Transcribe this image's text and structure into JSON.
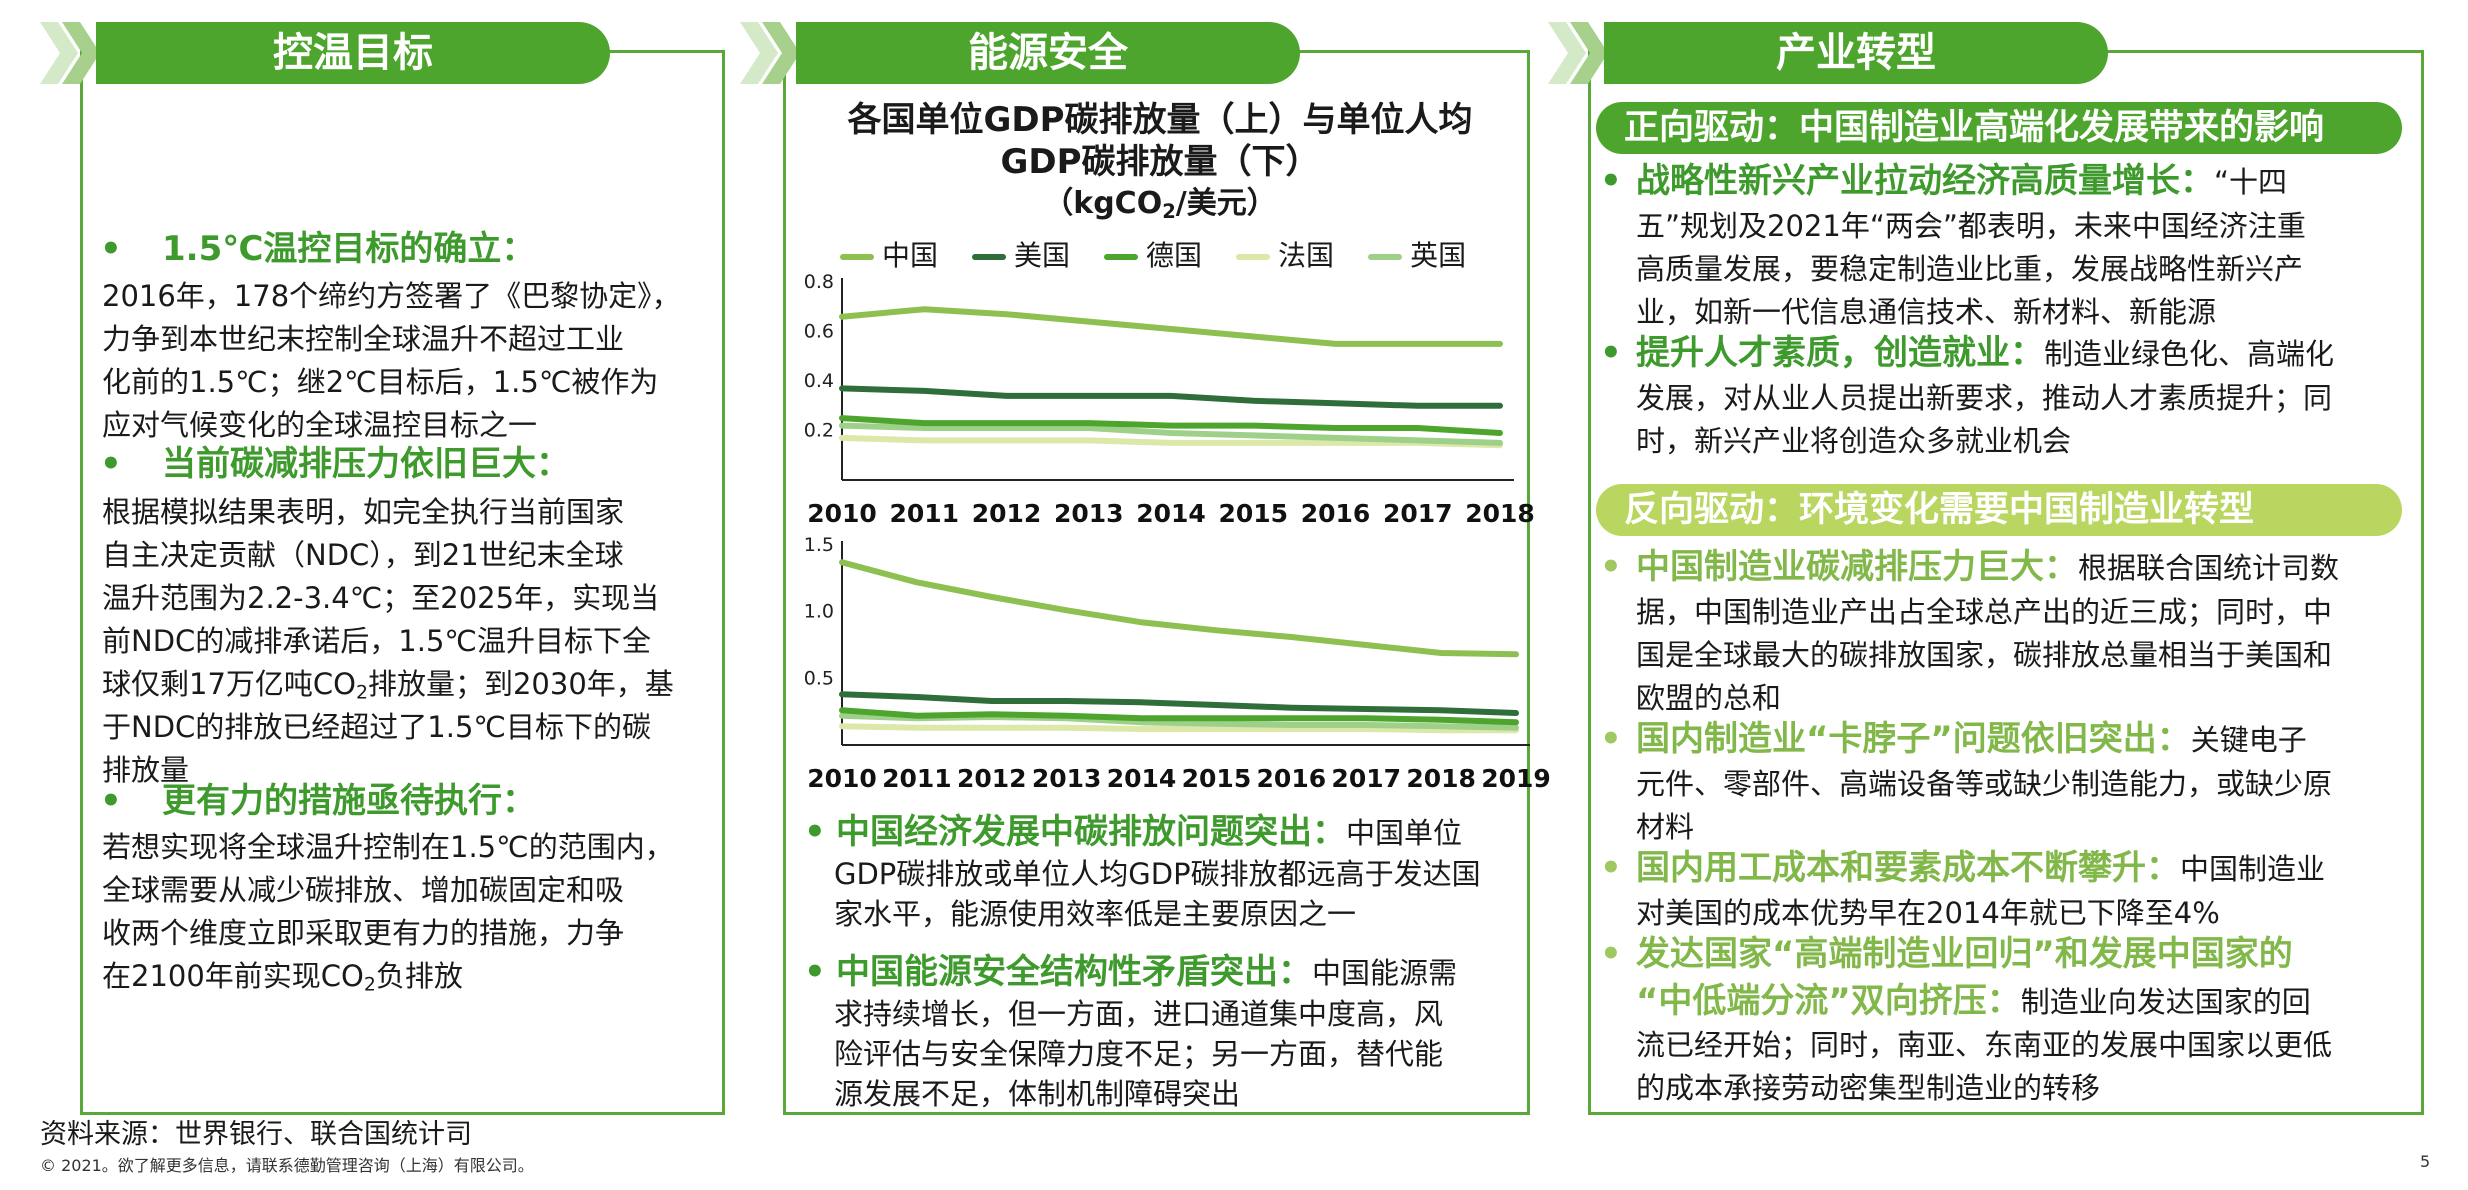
{
  "panels": {
    "left_title": "控温目标",
    "mid_title": "能源安全",
    "right_title": "产业转型"
  },
  "left": {
    "h1": "1.5℃温控目标的确立：",
    "p1": [
      "2016年，178个缔约方签署了《巴黎协定》，",
      "力争到本世纪末控制全球温升不超过工业",
      "化前的1.5℃；继2℃目标后，1.5℃被作为",
      "应对气候变化的全球温控目标之一"
    ],
    "h2": "当前碳减排压力依旧巨大：",
    "p2": [
      "根据模拟结果表明，如完全执行当前国家",
      "自主决定贡献（NDC），到21世纪末全球",
      "温升范围为2.2-3.4℃；至2025年，实现当",
      "前NDC的减排承诺后，1.5℃温升目标下全",
      "球仅剩17万亿吨CO",
      "2",
      "排放量；到2030年，基",
      "于NDC的排放已经超过了1.5℃目标下的碳",
      "排放量"
    ],
    "h3": "更有力的措施亟待执行：",
    "p3": [
      "若想实现将全球温升控制在1.5℃的范围内，",
      "全球需要从减少碳排放、增加碳固定和吸",
      "收两个维度立即采取更有力的措施，力争",
      "在2100年前实现CO",
      "2",
      "负排放"
    ]
  },
  "mid": {
    "title_line1": "各国单位GDP碳排放量（上）与单位人均",
    "title_line2": "GDP碳排放量（下）",
    "unit_pre": "（kgCO",
    "unit_sub": "2",
    "unit_post": "/美元）",
    "b1_head": "中国经济发展中碳排放问题突出：",
    "b1_text1": "中国单位",
    "b1_text2": "GDP碳排放或单位人均GDP碳排放都远高于发达国",
    "b1_text3": "家水平，能源使用效率低是主要原因之一",
    "b2_head": "中国能源安全结构性矛盾突出：",
    "b2_text1": "中国能源需",
    "b2_text2": "求持续增长，但一方面，进口通道集中度高，风",
    "b2_text3": "险评估与安全保障力度不足；另一方面，替代能",
    "b2_text4": "源发展不足，体制机制障碍突出"
  },
  "right": {
    "pill1": "正向驱动：中国制造业高端化发展带来的影响",
    "r1_head": "战略性新兴产业拉动经济高质量增长：",
    "r1_t1": "“十四",
    "r1_t2": "五”规划及2021年“两会”都表明，未来中国经济注重",
    "r1_t3": "高质量发展，要稳定制造业比重，发展战略性新兴产",
    "r1_t4": "业，如新一代信息通信技术、新材料、新能源",
    "r2_head": "提升人才素质，创造就业：",
    "r2_t1": "制造业绿色化、高端化",
    "r2_t2": "发展，对从业人员提出新要求，推动人才素质提升；同",
    "r2_t3": "时，新兴产业将创造众多就业机会",
    "pill2": "反向驱动：环境变化需要中国制造业转型",
    "r3_head": "中国制造业碳减排压力巨大：",
    "r3_t1": "根据联合国统计司数",
    "r3_t2": "据，中国制造业产出占全球总产出的近三成；同时，中",
    "r3_t3": "国是全球最大的碳排放国家，碳排放总量相当于美国和",
    "r3_t4": "欧盟的总和",
    "r4_head": "国内制造业“卡脖子”问题依旧突出：",
    "r4_t1": "关键电子",
    "r4_t2": "元件、零部件、高端设备等或缺少制造能力，或缺少原",
    "r4_t3": "材料",
    "r5_head": "国内用工成本和要素成本不断攀升：",
    "r5_t1": "中国制造业",
    "r5_t2": "对美国的成本优势早在2014年就已下降至4%",
    "r6_head1": "发达国家“高端制造业回归”和发展中国家的",
    "r6_head2": "“中低端分流”双向挤压：",
    "r6_t1": "制造业向发达国家的回",
    "r6_t2": "流已经开始；同时，南亚、东南亚的发展中国家以更低",
    "r6_t3": "的成本承接劳动密集型制造业的转移"
  },
  "footer": {
    "source": "资料来源：世界银行、联合国统计司",
    "copyright": "© 2021。欲了解更多信息，请联系德勤管理咨询（上海）有限公司。",
    "page": "5"
  },
  "bullet": "•",
  "chart_data": [
    {
      "type": "line",
      "x": [
        "2010",
        "2011",
        "2012",
        "2013",
        "2014",
        "2015",
        "2016",
        "2017",
        "2018"
      ],
      "ylim": [
        0,
        0.8
      ],
      "yticks": [
        "0.2",
        "0.4",
        "0.6",
        "0.8"
      ],
      "series": [
        {
          "name": "中国",
          "color": "#8dc050",
          "values": [
            0.66,
            0.69,
            0.67,
            0.64,
            0.61,
            0.58,
            0.55,
            0.55,
            0.55
          ]
        },
        {
          "name": "美国",
          "color": "#2f6e3a",
          "values": [
            0.37,
            0.36,
            0.34,
            0.34,
            0.34,
            0.32,
            0.31,
            0.3,
            0.3
          ]
        },
        {
          "name": "德国",
          "color": "#4ea52e",
          "values": [
            0.25,
            0.23,
            0.23,
            0.23,
            0.22,
            0.22,
            0.21,
            0.21,
            0.19
          ]
        },
        {
          "name": "法国",
          "color": "#dbe8a8",
          "values": [
            0.17,
            0.16,
            0.16,
            0.16,
            0.15,
            0.15,
            0.15,
            0.15,
            0.14
          ]
        },
        {
          "name": "英国",
          "color": "#9ed08a",
          "values": [
            0.22,
            0.21,
            0.21,
            0.21,
            0.19,
            0.18,
            0.17,
            0.16,
            0.15
          ]
        }
      ]
    },
    {
      "type": "line",
      "x": [
        "2010",
        "2011",
        "2012",
        "2013",
        "2014",
        "2015",
        "2016",
        "2017",
        "2018",
        "2019"
      ],
      "ylim": [
        0,
        1.5
      ],
      "yticks": [
        "0.5",
        "1.0",
        "1.5"
      ],
      "series": [
        {
          "name": "中国",
          "color": "#8dc050",
          "values": [
            1.37,
            1.22,
            1.11,
            1.01,
            0.92,
            0.86,
            0.81,
            0.75,
            0.69,
            0.68
          ]
        },
        {
          "name": "美国",
          "color": "#2f6e3a",
          "values": [
            0.38,
            0.36,
            0.33,
            0.33,
            0.32,
            0.3,
            0.28,
            0.27,
            0.26,
            0.24
          ]
        },
        {
          "name": "德国",
          "color": "#4ea52e",
          "values": [
            0.26,
            0.22,
            0.23,
            0.22,
            0.2,
            0.2,
            0.2,
            0.2,
            0.19,
            0.17
          ]
        },
        {
          "name": "法国",
          "color": "#dbe8a8",
          "values": [
            0.14,
            0.13,
            0.13,
            0.13,
            0.12,
            0.12,
            0.12,
            0.12,
            0.11,
            0.11
          ]
        },
        {
          "name": "英国",
          "color": "#9ed08a",
          "values": [
            0.22,
            0.2,
            0.21,
            0.2,
            0.17,
            0.16,
            0.15,
            0.15,
            0.14,
            0.13
          ]
        }
      ]
    }
  ]
}
